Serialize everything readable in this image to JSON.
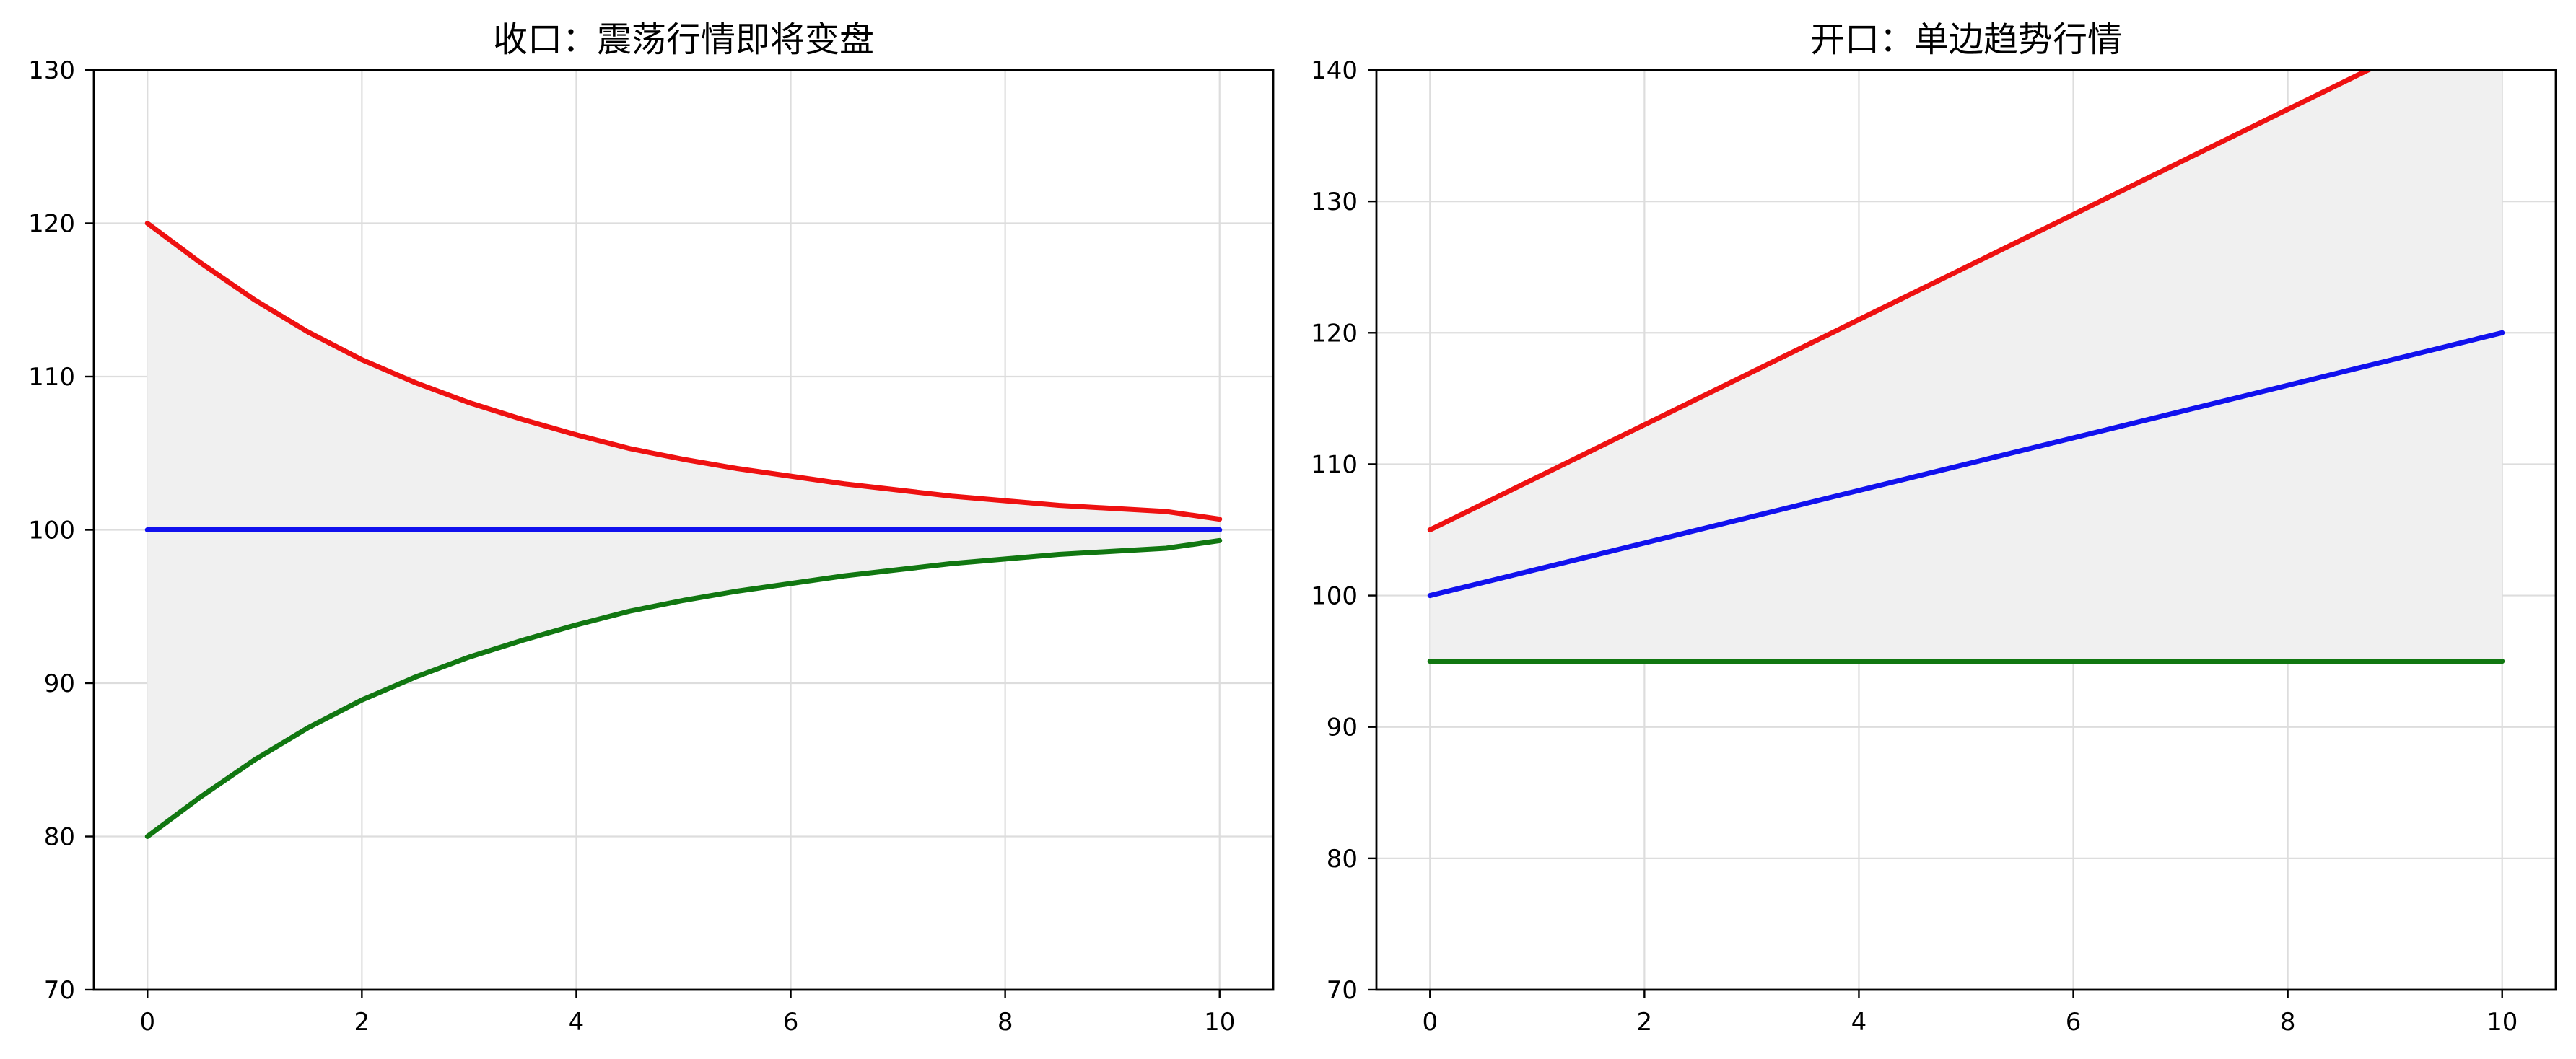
{
  "colors": {
    "upper": "#ee1111",
    "middle": "#1111ee",
    "lower": "#117711",
    "band_fill": "#f0f0f0",
    "grid": "#dddddd"
  },
  "chart_data": [
    {
      "type": "line",
      "title": "收口：震荡行情即将变盘",
      "xlabel": "",
      "ylabel": "",
      "xlim": [
        -0.5,
        10.5
      ],
      "ylim": [
        70,
        130
      ],
      "x_ticks": [
        0,
        2,
        4,
        6,
        8,
        10
      ],
      "y_ticks": [
        70,
        80,
        90,
        100,
        110,
        120,
        130
      ],
      "grid": true,
      "fill_between": [
        "upper",
        "lower"
      ],
      "x": [
        0,
        0.5,
        1,
        1.5,
        2,
        2.5,
        3,
        3.5,
        4,
        4.5,
        5,
        5.5,
        6,
        6.5,
        7,
        7.5,
        8,
        8.5,
        9,
        9.5,
        10
      ],
      "series": [
        {
          "key": "upper",
          "values": [
            120.0,
            117.4,
            115.0,
            112.9,
            111.1,
            109.6,
            108.3,
            107.2,
            106.2,
            105.3,
            104.6,
            104.0,
            103.5,
            103.0,
            102.6,
            102.2,
            101.9,
            101.6,
            101.4,
            101.2,
            100.7
          ]
        },
        {
          "key": "middle",
          "values": [
            100,
            100,
            100,
            100,
            100,
            100,
            100,
            100,
            100,
            100,
            100,
            100,
            100,
            100,
            100,
            100,
            100,
            100,
            100,
            100,
            100
          ]
        },
        {
          "key": "lower",
          "values": [
            80.0,
            82.6,
            85.0,
            87.1,
            88.9,
            90.4,
            91.7,
            92.8,
            93.8,
            94.7,
            95.4,
            96.0,
            96.5,
            97.0,
            97.4,
            97.8,
            98.1,
            98.4,
            98.6,
            98.8,
            99.3
          ]
        }
      ]
    },
    {
      "type": "line",
      "title": "开口：单边趋势行情",
      "xlabel": "",
      "ylabel": "",
      "xlim": [
        -0.5,
        10.5
      ],
      "ylim": [
        70,
        140
      ],
      "x_ticks": [
        0,
        2,
        4,
        6,
        8,
        10
      ],
      "y_ticks": [
        70,
        80,
        90,
        100,
        110,
        120,
        130,
        140
      ],
      "grid": true,
      "fill_between": [
        "upper",
        "lower"
      ],
      "x": [
        0,
        1,
        2,
        3,
        4,
        5,
        6,
        7,
        8,
        9,
        10
      ],
      "series": [
        {
          "key": "upper",
          "values": [
            105,
            109,
            113,
            117,
            121,
            125,
            129,
            133,
            137,
            141,
            145
          ]
        },
        {
          "key": "middle",
          "values": [
            100,
            102,
            104,
            106,
            108,
            110,
            112,
            114,
            116,
            118,
            120
          ]
        },
        {
          "key": "lower",
          "values": [
            95,
            95,
            95,
            95,
            95,
            95,
            95,
            95,
            95,
            95,
            95
          ]
        }
      ]
    }
  ]
}
